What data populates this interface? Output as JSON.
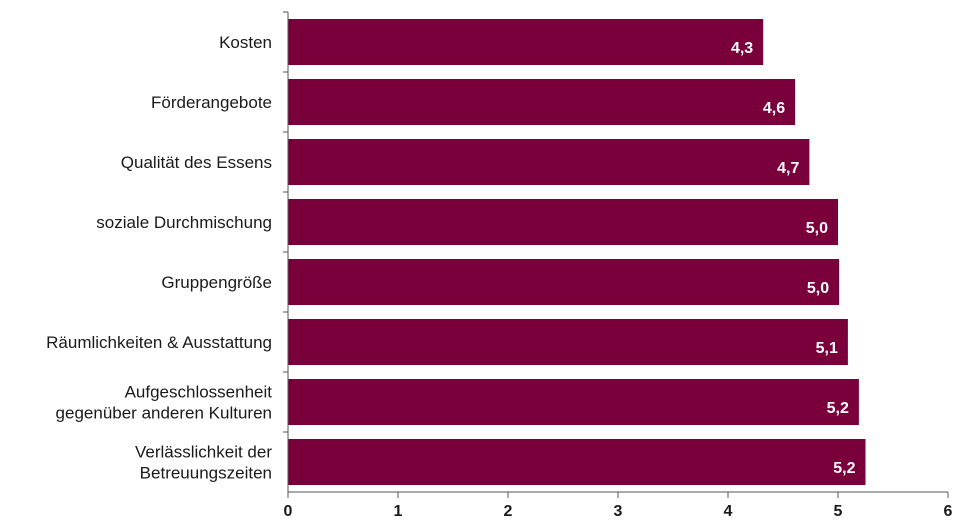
{
  "chart_data": {
    "type": "bar",
    "orientation": "horizontal",
    "categories": [
      [
        "Kosten"
      ],
      [
        "Förderangebote"
      ],
      [
        "Qualität des Essens"
      ],
      [
        "soziale Durchmischung"
      ],
      [
        "Gruppengröße"
      ],
      [
        "Räumlichkeiten & Ausstattung"
      ],
      [
        "Aufgeschlossenheit",
        "gegenüber anderen Kulturen"
      ],
      [
        "Verlässlichkeit der",
        "Betreuungszeiten"
      ]
    ],
    "values": [
      4.32,
      4.61,
      4.74,
      5.0,
      5.01,
      5.09,
      5.19,
      5.25
    ],
    "value_labels": [
      "4,3",
      "4,6",
      "4,7",
      "5,0",
      "5,0",
      "5,1",
      "5,2",
      "5,2"
    ],
    "x_ticks": [
      "0",
      "1",
      "2",
      "3",
      "4",
      "5",
      "6"
    ],
    "xlim": [
      0,
      6
    ],
    "bar_color": "#7a003c",
    "grid": false,
    "title": "",
    "xlabel": "",
    "ylabel": ""
  }
}
